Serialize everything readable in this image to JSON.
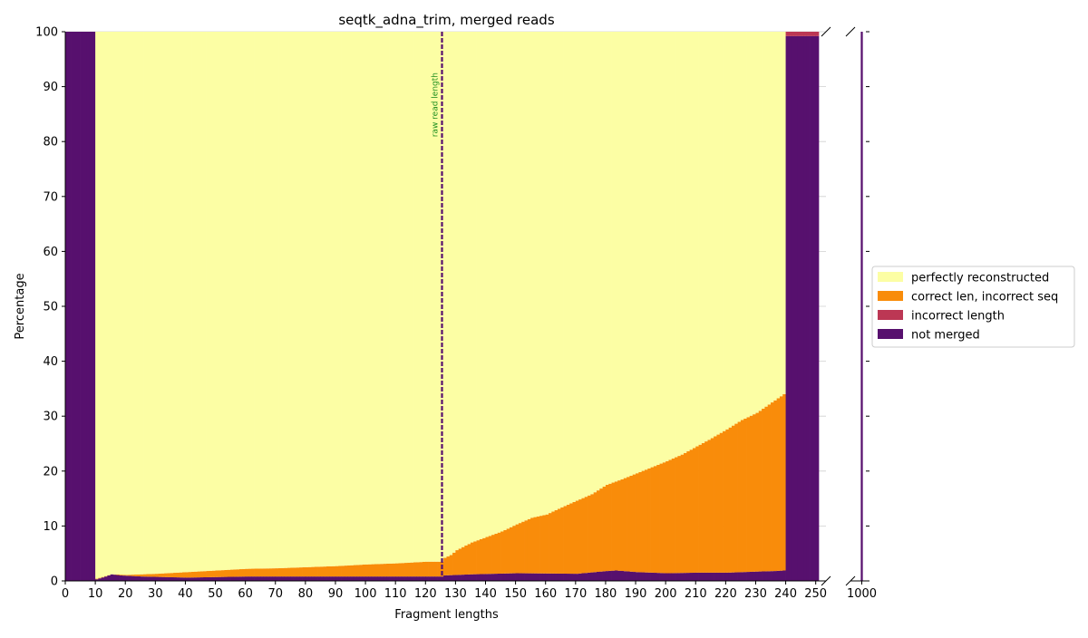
{
  "chart_data": {
    "type": "bar",
    "stacked": true,
    "title": "seqtk_adna_trim, merged reads",
    "xlabel": "Fragment lengths",
    "ylabel": "Percentage",
    "ylim": [
      0,
      100
    ],
    "xlim_main": [
      0,
      251
    ],
    "xlim_inset": [
      998,
      1002
    ],
    "x_ticks_main": [
      0,
      10,
      20,
      30,
      40,
      50,
      60,
      70,
      80,
      90,
      100,
      110,
      120,
      130,
      140,
      150,
      160,
      170,
      180,
      190,
      200,
      210,
      220,
      230,
      240,
      250
    ],
    "x_ticks_inset": [
      1000
    ],
    "y_ticks": [
      0,
      10,
      20,
      30,
      40,
      50,
      60,
      70,
      80,
      90,
      100
    ],
    "grid": true,
    "broken_x_axis": true,
    "legend_position": "center-right",
    "colors": {
      "perfectly reconstructed": "#fcfea4",
      "correct len, incorrect seq": "#f98c0a",
      "incorrect length": "#bc3754",
      "not merged": "#57106e"
    },
    "series": [
      {
        "name": "perfectly reconstructed"
      },
      {
        "name": "correct len, incorrect seq"
      },
      {
        "name": "incorrect length"
      },
      {
        "name": "not merged"
      }
    ],
    "notmerged_anchors": [
      [
        10,
        0.3
      ],
      [
        13,
        0.8
      ],
      [
        15,
        1.2
      ],
      [
        18,
        1.0
      ],
      [
        25,
        0.8
      ],
      [
        40,
        0.6
      ],
      [
        60,
        0.8
      ],
      [
        80,
        0.8
      ],
      [
        100,
        0.8
      ],
      [
        120,
        0.8
      ],
      [
        125,
        0.8
      ],
      [
        126,
        1.0
      ],
      [
        135,
        1.2
      ],
      [
        150,
        1.4
      ],
      [
        170,
        1.3
      ],
      [
        180,
        1.8
      ],
      [
        183,
        1.9
      ],
      [
        190,
        1.6
      ],
      [
        200,
        1.4
      ],
      [
        210,
        1.5
      ],
      [
        220,
        1.5
      ],
      [
        230,
        1.7
      ],
      [
        236,
        1.8
      ],
      [
        239,
        1.9
      ]
    ],
    "total_nonperfect_anchors": [
      [
        10,
        0.4
      ],
      [
        15,
        1.2
      ],
      [
        20,
        1.1
      ],
      [
        30,
        1.3
      ],
      [
        40,
        1.6
      ],
      [
        50,
        1.9
      ],
      [
        60,
        2.2
      ],
      [
        70,
        2.3
      ],
      [
        80,
        2.5
      ],
      [
        90,
        2.7
      ],
      [
        100,
        3.0
      ],
      [
        110,
        3.2
      ],
      [
        120,
        3.5
      ],
      [
        125,
        3.5
      ],
      [
        126,
        4.2
      ],
      [
        128,
        4.7
      ],
      [
        130,
        5.6
      ],
      [
        135,
        7.0
      ],
      [
        140,
        8.0
      ],
      [
        145,
        9.0
      ],
      [
        150,
        10.3
      ],
      [
        155,
        11.5
      ],
      [
        160,
        12.1
      ],
      [
        165,
        13.4
      ],
      [
        170,
        14.6
      ],
      [
        175,
        15.8
      ],
      [
        180,
        17.5
      ],
      [
        185,
        18.5
      ],
      [
        190,
        19.6
      ],
      [
        195,
        20.7
      ],
      [
        200,
        21.8
      ],
      [
        205,
        23.0
      ],
      [
        210,
        24.5
      ],
      [
        215,
        26.0
      ],
      [
        220,
        27.6
      ],
      [
        225,
        29.3
      ],
      [
        230,
        30.6
      ],
      [
        235,
        32.5
      ],
      [
        239,
        34.0
      ]
    ],
    "fully_not_merged_ranges": [
      [
        0,
        9
      ],
      [
        240,
        250
      ]
    ],
    "incorrect_length_at_240_250": 0.8,
    "inset_bar_x": 1000,
    "inset_bar_not_merged": 100,
    "vlines": [
      {
        "x": 125,
        "style": "dashed",
        "color": "#57106e",
        "label": "raw read length",
        "label_color": "#1f8f1f"
      }
    ]
  }
}
